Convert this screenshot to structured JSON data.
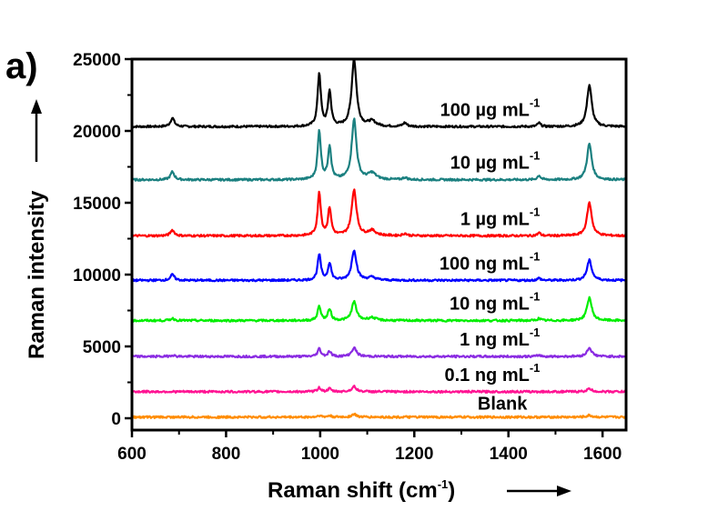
{
  "chart_data": {
    "type": "line",
    "panel_label": "a)",
    "title": "",
    "xlabel": "Raman shift (cm",
    "xlabel_sup": "-1",
    "xlabel_suffix": ")",
    "ylabel": "Raman intensity",
    "xlim": [
      600,
      1650
    ],
    "ylim": [
      -500,
      25000
    ],
    "x_ticks": [
      600,
      800,
      1000,
      1200,
      1400,
      1600
    ],
    "x_minor_ticks": [
      700,
      900,
      1100,
      1300,
      1500
    ],
    "y_ticks": [
      0,
      5000,
      10000,
      15000,
      20000,
      25000
    ],
    "y_minor_ticks": [
      2500,
      7500,
      12500,
      17500,
      22500
    ],
    "grid": false,
    "legend": "inline labels above each trace",
    "peak_positions": [
      686,
      998,
      1020,
      1072,
      1110,
      1180,
      1465,
      1572
    ],
    "series": [
      {
        "name": "100 µg mL",
        "sup": "-1",
        "color": "#000000",
        "baseline": 20300,
        "peaks": [
          [
            686,
            600
          ],
          [
            998,
            3700
          ],
          [
            1020,
            2400
          ],
          [
            1072,
            4700
          ],
          [
            1110,
            350
          ],
          [
            1180,
            250
          ],
          [
            1465,
            250
          ],
          [
            1572,
            2900
          ]
        ]
      },
      {
        "name": "10 µg mL",
        "sup": "-1",
        "color": "#1b8080",
        "baseline": 16600,
        "peaks": [
          [
            686,
            550
          ],
          [
            998,
            3400
          ],
          [
            1020,
            2300
          ],
          [
            1072,
            4200
          ],
          [
            1110,
            450
          ],
          [
            1180,
            150
          ],
          [
            1465,
            300
          ],
          [
            1572,
            2500
          ]
        ]
      },
      {
        "name": "1 µg mL",
        "sup": "-1",
        "color": "#ff0000",
        "baseline": 12700,
        "peaks": [
          [
            686,
            400
          ],
          [
            998,
            3000
          ],
          [
            1020,
            1900
          ],
          [
            1072,
            3200
          ],
          [
            1110,
            350
          ],
          [
            1180,
            150
          ],
          [
            1465,
            200
          ],
          [
            1572,
            2300
          ]
        ]
      },
      {
        "name": "100 ng mL",
        "sup": "-1",
        "color": "#0000ff",
        "baseline": 9600,
        "peaks": [
          [
            686,
            400
          ],
          [
            998,
            1800
          ],
          [
            1020,
            1200
          ],
          [
            1072,
            2100
          ],
          [
            1110,
            200
          ],
          [
            1465,
            150
          ],
          [
            1572,
            1400
          ]
        ]
      },
      {
        "name": "10 ng mL",
        "sup": "-1",
        "color": "#00ee00",
        "baseline": 6800,
        "peaks": [
          [
            686,
            150
          ],
          [
            998,
            1000
          ],
          [
            1020,
            800
          ],
          [
            1072,
            1300
          ],
          [
            1110,
            200
          ],
          [
            1465,
            150
          ],
          [
            1572,
            1600
          ]
        ]
      },
      {
        "name": "1 ng mL",
        "sup": "-1",
        "color": "#8a2be2",
        "baseline": 4300,
        "peaks": [
          [
            686,
            100
          ],
          [
            998,
            550
          ],
          [
            1020,
            350
          ],
          [
            1072,
            600
          ],
          [
            1465,
            100
          ],
          [
            1572,
            600
          ]
        ]
      },
      {
        "name": "0.1 ng mL",
        "sup": "-1",
        "color": "#ff1493",
        "baseline": 1850,
        "peaks": [
          [
            998,
            300
          ],
          [
            1020,
            200
          ],
          [
            1072,
            350
          ],
          [
            1572,
            200
          ]
        ]
      },
      {
        "name": "Blank",
        "sup": "",
        "color": "#ff8c00",
        "baseline": 80,
        "peaks": [
          [
            998,
            120
          ],
          [
            1020,
            100
          ],
          [
            1072,
            200
          ],
          [
            1572,
            120
          ]
        ]
      }
    ]
  }
}
